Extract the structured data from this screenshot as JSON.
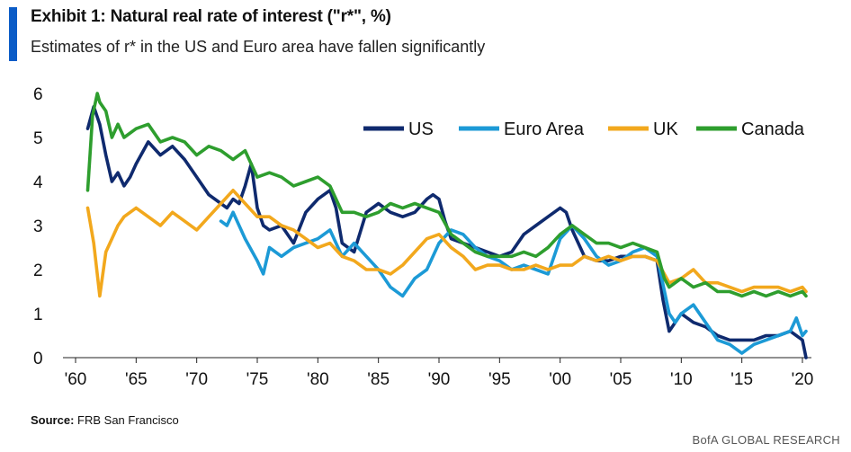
{
  "header": {
    "title": "Exhibit 1: Natural real rate of interest (\"r*\", %)",
    "subtitle": "Estimates of r* in the US and Euro area have fallen significantly"
  },
  "source": {
    "label": "Source:",
    "text": "FRB San Francisco"
  },
  "footer": {
    "text": "BofA GLOBAL RESEARCH"
  },
  "colors": {
    "accent": "#0b5cc7"
  },
  "chart_data": {
    "type": "line",
    "title": "Natural real rate of interest (r*, %)",
    "xlabel": "",
    "ylabel": "",
    "xlim": [
      1960,
      2020.5
    ],
    "ylim": [
      0,
      6
    ],
    "yticks": [
      0,
      1,
      2,
      3,
      4,
      5,
      6
    ],
    "ytick_labels": [
      "0",
      "1",
      "2",
      "3",
      "4",
      "5",
      "6"
    ],
    "xticks": [
      1960,
      1965,
      1970,
      1975,
      1980,
      1985,
      1990,
      1995,
      2000,
      2005,
      2010,
      2015,
      2020
    ],
    "xtick_labels": [
      "'60",
      "'65",
      "'70",
      "'75",
      "'80",
      "'85",
      "'90",
      "'95",
      "'00",
      "'05",
      "'10",
      "'15",
      "'20"
    ],
    "grid": false,
    "legend_position": "top-right",
    "series": [
      {
        "name": "US",
        "color": "#0f2a6e",
        "x": [
          1961,
          1961.5,
          1962,
          1962.5,
          1963,
          1963.5,
          1964,
          1964.5,
          1965,
          1966,
          1967,
          1968,
          1969,
          1970,
          1971,
          1972,
          1972.5,
          1973,
          1973.5,
          1974,
          1974.5,
          1975,
          1975.5,
          1976,
          1977,
          1978,
          1979,
          1980,
          1981,
          1981.5,
          1982,
          1983,
          1984,
          1985,
          1986,
          1987,
          1988,
          1989,
          1989.5,
          1990,
          1990.5,
          1991,
          1992,
          1993,
          1994,
          1995,
          1996,
          1997,
          1998,
          1999,
          2000,
          2000.5,
          2001,
          2002,
          2003,
          2004,
          2005,
          2006,
          2007,
          2008,
          2008.5,
          2009,
          2010,
          2011,
          2012,
          2013,
          2014,
          2015,
          2016,
          2017,
          2018,
          2019,
          2019.5,
          2020,
          2020.3
        ],
        "values": [
          5.2,
          5.7,
          5.3,
          4.6,
          4.0,
          4.2,
          3.9,
          4.1,
          4.4,
          4.9,
          4.6,
          4.8,
          4.5,
          4.1,
          3.7,
          3.5,
          3.4,
          3.6,
          3.5,
          3.9,
          4.4,
          3.4,
          3.0,
          2.9,
          3.0,
          2.6,
          3.3,
          3.6,
          3.8,
          3.4,
          2.6,
          2.4,
          3.3,
          3.5,
          3.3,
          3.2,
          3.3,
          3.6,
          3.7,
          3.6,
          3.1,
          2.7,
          2.6,
          2.5,
          2.4,
          2.3,
          2.4,
          2.8,
          3.0,
          3.2,
          3.4,
          3.3,
          2.9,
          2.3,
          2.2,
          2.2,
          2.3,
          2.3,
          2.3,
          2.2,
          1.3,
          0.6,
          1.0,
          0.8,
          0.7,
          0.5,
          0.4,
          0.4,
          0.4,
          0.5,
          0.5,
          0.6,
          0.5,
          0.4,
          0.0
        ]
      },
      {
        "name": "Euro Area",
        "color": "#1c9ad6",
        "x": [
          1972,
          1972.5,
          1973,
          1974,
          1975,
          1975.5,
          1976,
          1977,
          1978,
          1979,
          1980,
          1981,
          1982,
          1983,
          1984,
          1985,
          1986,
          1987,
          1988,
          1989,
          1990,
          1991,
          1992,
          1993,
          1994,
          1995,
          1996,
          1997,
          1998,
          1999,
          2000,
          2001,
          2002,
          2003,
          2004,
          2005,
          2006,
          2007,
          2008,
          2009,
          2009.5,
          2010,
          2011,
          2012,
          2013,
          2014,
          2015,
          2016,
          2017,
          2018,
          2019,
          2019.5,
          2020,
          2020.3
        ],
        "values": [
          3.1,
          3.0,
          3.3,
          2.7,
          2.2,
          1.9,
          2.5,
          2.3,
          2.5,
          2.6,
          2.7,
          2.9,
          2.3,
          2.6,
          2.3,
          2.0,
          1.6,
          1.4,
          1.8,
          2.0,
          2.6,
          2.9,
          2.8,
          2.5,
          2.3,
          2.2,
          2.0,
          2.1,
          2.0,
          1.9,
          2.7,
          3.0,
          2.7,
          2.3,
          2.1,
          2.2,
          2.4,
          2.5,
          2.3,
          1.0,
          0.8,
          1.0,
          1.2,
          0.8,
          0.4,
          0.3,
          0.1,
          0.3,
          0.4,
          0.5,
          0.6,
          0.9,
          0.5,
          0.6
        ]
      },
      {
        "name": "UK",
        "color": "#f2a81d",
        "x": [
          1961,
          1961.5,
          1962,
          1962.5,
          1963,
          1963.5,
          1964,
          1965,
          1966,
          1967,
          1968,
          1969,
          1970,
          1971,
          1972,
          1973,
          1974,
          1975,
          1976,
          1977,
          1978,
          1979,
          1980,
          1981,
          1982,
          1983,
          1984,
          1985,
          1986,
          1987,
          1988,
          1989,
          1990,
          1991,
          1992,
          1993,
          1994,
          1995,
          1996,
          1997,
          1998,
          1999,
          2000,
          2001,
          2002,
          2003,
          2004,
          2005,
          2006,
          2007,
          2008,
          2009,
          2010,
          2011,
          2012,
          2013,
          2014,
          2015,
          2016,
          2017,
          2018,
          2019,
          2020,
          2020.3
        ],
        "values": [
          3.4,
          2.6,
          1.4,
          2.4,
          2.7,
          3.0,
          3.2,
          3.4,
          3.2,
          3.0,
          3.3,
          3.1,
          2.9,
          3.2,
          3.5,
          3.8,
          3.5,
          3.2,
          3.2,
          3.0,
          2.9,
          2.7,
          2.5,
          2.6,
          2.3,
          2.2,
          2.0,
          2.0,
          1.9,
          2.1,
          2.4,
          2.7,
          2.8,
          2.5,
          2.3,
          2.0,
          2.1,
          2.1,
          2.0,
          2.0,
          2.1,
          2.0,
          2.1,
          2.1,
          2.3,
          2.2,
          2.3,
          2.2,
          2.3,
          2.3,
          2.2,
          1.7,
          1.8,
          2.0,
          1.7,
          1.7,
          1.6,
          1.5,
          1.6,
          1.6,
          1.6,
          1.5,
          1.6,
          1.5
        ]
      },
      {
        "name": "Canada",
        "color": "#2e9e2e",
        "x": [
          1961,
          1961.4,
          1961.8,
          1962,
          1962.5,
          1963,
          1963.5,
          1964,
          1965,
          1966,
          1967,
          1968,
          1969,
          1970,
          1971,
          1972,
          1973,
          1974,
          1975,
          1976,
          1977,
          1978,
          1979,
          1980,
          1981,
          1982,
          1983,
          1984,
          1985,
          1986,
          1987,
          1988,
          1989,
          1990,
          1991,
          1992,
          1993,
          1994,
          1995,
          1996,
          1997,
          1998,
          1999,
          2000,
          2001,
          2002,
          2003,
          2004,
          2005,
          2006,
          2007,
          2008,
          2008.6,
          2009,
          2010,
          2011,
          2012,
          2013,
          2014,
          2015,
          2016,
          2017,
          2018,
          2019,
          2020,
          2020.3
        ],
        "values": [
          3.8,
          5.5,
          6.0,
          5.8,
          5.6,
          5.0,
          5.3,
          5.0,
          5.2,
          5.3,
          4.9,
          5.0,
          4.9,
          4.6,
          4.8,
          4.7,
          4.5,
          4.7,
          4.1,
          4.2,
          4.1,
          3.9,
          4.0,
          4.1,
          3.9,
          3.3,
          3.3,
          3.2,
          3.3,
          3.5,
          3.4,
          3.5,
          3.4,
          3.3,
          2.8,
          2.6,
          2.4,
          2.3,
          2.3,
          2.3,
          2.4,
          2.3,
          2.5,
          2.8,
          3.0,
          2.8,
          2.6,
          2.6,
          2.5,
          2.6,
          2.5,
          2.4,
          1.8,
          1.6,
          1.8,
          1.6,
          1.7,
          1.5,
          1.5,
          1.4,
          1.5,
          1.4,
          1.5,
          1.4,
          1.5,
          1.4
        ]
      }
    ]
  }
}
